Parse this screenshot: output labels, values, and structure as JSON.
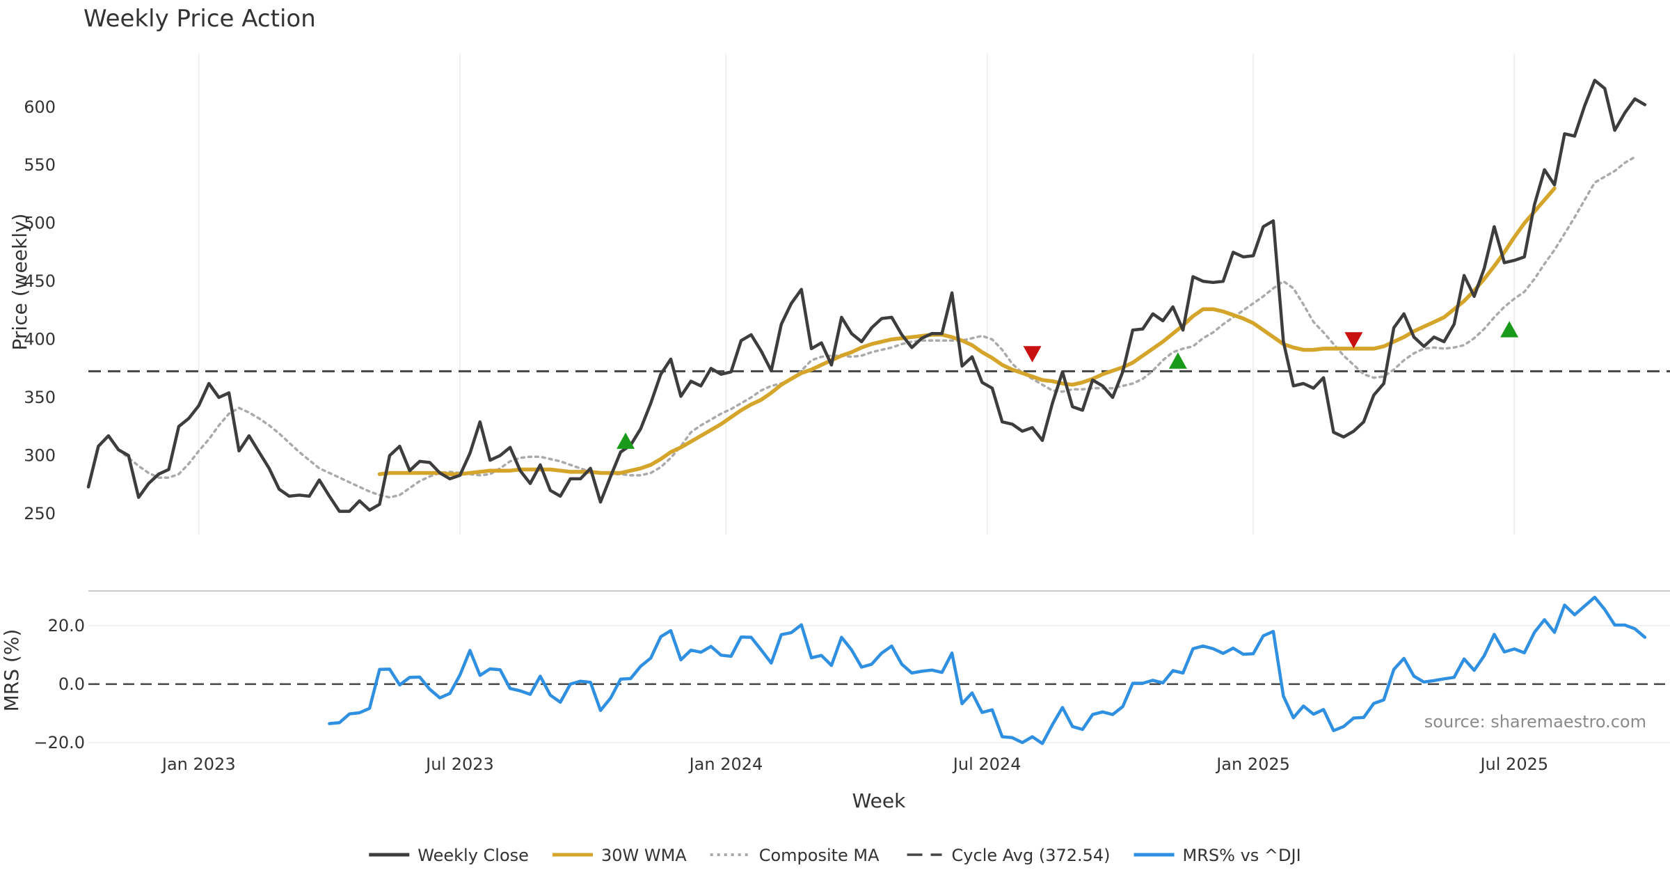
{
  "chart_data": {
    "type": "line",
    "title": "Weekly Price Action",
    "xlabel": "Week",
    "source": "source: sharemaestro.com",
    "x_ticks": [
      {
        "label": "Jan 2023",
        "week": 11
      },
      {
        "label": "Jul 2023",
        "week": 37
      },
      {
        "label": "Jan 2024",
        "week": 63.5
      },
      {
        "label": "Jul 2024",
        "week": 89.5
      },
      {
        "label": "Jan 2025",
        "week": 116
      },
      {
        "label": "Jul 2025",
        "week": 142
      }
    ],
    "x_range": [
      0,
      157.5
    ],
    "price_panel": {
      "ylabel": "Price (weekly)",
      "ylim": [
        232,
        646
      ],
      "y_ticks": [
        "250",
        "300",
        "350",
        "400",
        "450",
        "500",
        "550",
        "600"
      ],
      "cycle_avg": 372.54,
      "series": [
        {
          "name": "Weekly Close",
          "color": "#3d3d3d",
          "start_week": 0,
          "values": [
            273,
            308,
            317,
            305,
            300,
            264,
            276,
            284,
            288,
            325,
            332,
            343,
            362,
            350,
            354,
            304,
            317,
            303,
            289,
            271,
            265,
            266,
            265,
            279,
            265,
            252,
            252,
            261,
            253,
            258,
            300,
            308,
            287,
            295,
            294,
            285,
            280,
            283,
            302,
            329,
            296,
            300,
            307,
            287,
            276,
            292,
            270,
            265,
            280,
            280,
            289,
            260,
            282,
            303,
            309,
            323,
            345,
            370,
            383,
            351,
            364,
            360,
            375,
            370,
            372,
            399,
            404,
            390,
            373,
            413,
            431,
            443,
            392,
            397,
            378,
            419,
            405,
            398,
            410,
            418,
            419,
            404,
            393,
            401,
            405,
            405,
            440,
            377,
            385,
            363,
            358,
            329,
            327,
            321,
            324,
            313,
            345,
            372,
            342,
            339,
            365,
            360,
            350,
            372,
            408,
            409,
            422,
            416,
            428,
            408,
            454,
            450,
            449,
            450,
            475,
            471,
            472,
            497,
            502,
            398,
            360,
            362,
            358,
            367,
            320,
            316,
            321,
            329,
            352,
            362,
            410,
            422,
            402,
            394,
            402,
            398,
            413,
            455,
            437,
            461,
            497,
            466,
            468,
            471,
            516,
            546,
            533,
            577,
            575,
            601,
            623,
            616,
            580,
            595,
            607,
            602
          ]
        },
        {
          "name": "30W WMA",
          "color": "#d4a52a",
          "start_week": 29,
          "values": [
            284,
            285,
            285,
            285,
            285,
            285,
            285,
            284,
            284,
            285,
            286,
            287,
            287,
            287,
            288,
            288,
            288,
            288,
            287,
            286,
            286,
            286,
            285,
            285,
            285,
            287,
            289,
            292,
            297,
            303,
            307,
            312,
            317,
            322,
            327,
            333,
            339,
            344,
            348,
            354,
            361,
            366,
            371,
            374,
            378,
            382,
            386,
            389,
            393,
            396,
            398,
            400,
            401,
            402,
            403,
            404,
            404,
            402,
            399,
            395,
            389,
            384,
            378,
            374,
            371,
            368,
            365,
            364,
            362,
            361,
            363,
            366,
            370,
            373,
            376,
            380,
            386,
            392,
            398,
            405,
            412,
            420,
            426,
            426,
            424,
            421,
            418,
            414,
            408,
            402,
            396,
            393,
            391,
            391,
            392,
            392,
            392,
            392,
            392,
            392,
            394,
            398,
            402,
            407,
            411,
            415,
            419,
            426,
            433,
            442,
            452,
            463,
            475,
            488,
            500,
            510,
            520,
            530
          ]
        },
        {
          "name": "Composite MA",
          "color": "#aaaaaa",
          "start_week": 3,
          "values": [
            305,
            298,
            291,
            285,
            281,
            281,
            284,
            293,
            304,
            314,
            326,
            336,
            341,
            337,
            332,
            326,
            319,
            311,
            303,
            296,
            289,
            285,
            281,
            277,
            273,
            269,
            266,
            264,
            266,
            272,
            278,
            282,
            285,
            286,
            285,
            284,
            283,
            284,
            289,
            295,
            298,
            299,
            299,
            297,
            295,
            292,
            289,
            286,
            285,
            284,
            284,
            283,
            283,
            285,
            290,
            298,
            308,
            320,
            326,
            331,
            336,
            340,
            345,
            350,
            356,
            360,
            362,
            366,
            373,
            382,
            385,
            386,
            386,
            385,
            386,
            389,
            391,
            393,
            396,
            398,
            399,
            399,
            399,
            399,
            399,
            401,
            403,
            400,
            391,
            379,
            371,
            366,
            361,
            356,
            355,
            357,
            357,
            358,
            358,
            358,
            360,
            362,
            366,
            373,
            382,
            389,
            392,
            394,
            401,
            406,
            413,
            419,
            425,
            431,
            437,
            444,
            450,
            444,
            430,
            415,
            406,
            396,
            386,
            378,
            370,
            367,
            368,
            374,
            382,
            388,
            392,
            393,
            392,
            393,
            395,
            401,
            409,
            419,
            428,
            435,
            441,
            452,
            465,
            477,
            491,
            505,
            520,
            535,
            540,
            545,
            552,
            557
          ]
        },
        {
          "name": "Cycle Avg (372.54)",
          "color": "#444444",
          "dash": "dash"
        }
      ],
      "markers": [
        {
          "type": "buy",
          "week": 53.5,
          "value": 312,
          "color": "#1a9a1a"
        },
        {
          "type": "sell",
          "week": 94,
          "value": 388,
          "color": "#c81010"
        },
        {
          "type": "buy",
          "week": 108.5,
          "value": 381,
          "color": "#1a9a1a"
        },
        {
          "type": "sell",
          "week": 126,
          "value": 400,
          "color": "#c81010"
        },
        {
          "type": "buy",
          "week": 141.5,
          "value": 408,
          "color": "#1a9a1a"
        }
      ]
    },
    "mrs_panel": {
      "ylabel": "MRS (%)",
      "ylim": [
        -20.5,
        29
      ],
      "y_ticks": [
        {
          "label": "20.0",
          "value": 20
        },
        {
          "label": "0.0",
          "value": 0
        },
        {
          "label": "−20.0",
          "value": -20
        }
      ],
      "zero_line": 0,
      "series": [
        {
          "name": "MRS% vs ^DJI",
          "color": "#2f8fe0",
          "start_week": 24,
          "values": [
            -13.5,
            -13.2,
            -10.2,
            -9.8,
            -8.3,
            5,
            5.1,
            -0.3,
            2.3,
            2.4,
            -1.8,
            -4.7,
            -3.2,
            3.1,
            11.5,
            3,
            5.2,
            4.9,
            -1.5,
            -2.3,
            -3.5,
            2.7,
            -3.8,
            -6.2,
            0,
            1,
            0.6,
            -9,
            -4.8,
            1.7,
            1.9,
            6.1,
            8.9,
            16.2,
            18.3,
            8.3,
            11.6,
            10.9,
            12.9,
            9.9,
            9.5,
            16.1,
            16,
            11.7,
            7.2,
            16.9,
            17.6,
            20.3,
            9,
            9.8,
            6.4,
            16,
            11.7,
            5.8,
            6.8,
            10.6,
            13,
            6.8,
            3.8,
            4.4,
            4.8,
            4,
            10.6,
            -6.7,
            -3,
            -9.7,
            -8.8,
            -18,
            -18.3,
            -20,
            -18,
            -20.3,
            -13.9,
            -8,
            -14.5,
            -15.5,
            -10.4,
            -9.5,
            -10.4,
            -7.7,
            0.3,
            0.3,
            1.3,
            0.4,
            4.6,
            3.8,
            12.1,
            13,
            12.1,
            10.5,
            12.3,
            10.2,
            10.4,
            16.5,
            18,
            -4.1,
            -11.5,
            -7.5,
            -10.3,
            -8.7,
            -15.9,
            -14.5,
            -11.6,
            -11.4,
            -6.6,
            -5.4,
            5,
            8.8,
            2.7,
            0.7,
            1.2,
            1.8,
            2.3,
            8.6,
            4.7,
            9.7,
            17,
            11,
            12,
            10.7,
            17.7,
            22,
            17.7,
            27,
            23.7,
            26.7,
            29.7,
            25.5,
            20.2,
            20.2,
            18.9,
            16
          ]
        }
      ]
    },
    "legend": {
      "placement": "bottom-center",
      "entries": [
        {
          "label": "Weekly Close",
          "color": "#3d3d3d",
          "style": "solid"
        },
        {
          "label": "30W WMA",
          "color": "#d4a52a",
          "style": "solid"
        },
        {
          "label": "Composite MA",
          "color": "#aaaaaa",
          "style": "dotted"
        },
        {
          "label": "Cycle Avg (372.54)",
          "color": "#444444",
          "style": "dashed"
        },
        {
          "label": "MRS% vs ^DJI",
          "color": "#2f8fe0",
          "style": "solid"
        }
      ]
    }
  }
}
